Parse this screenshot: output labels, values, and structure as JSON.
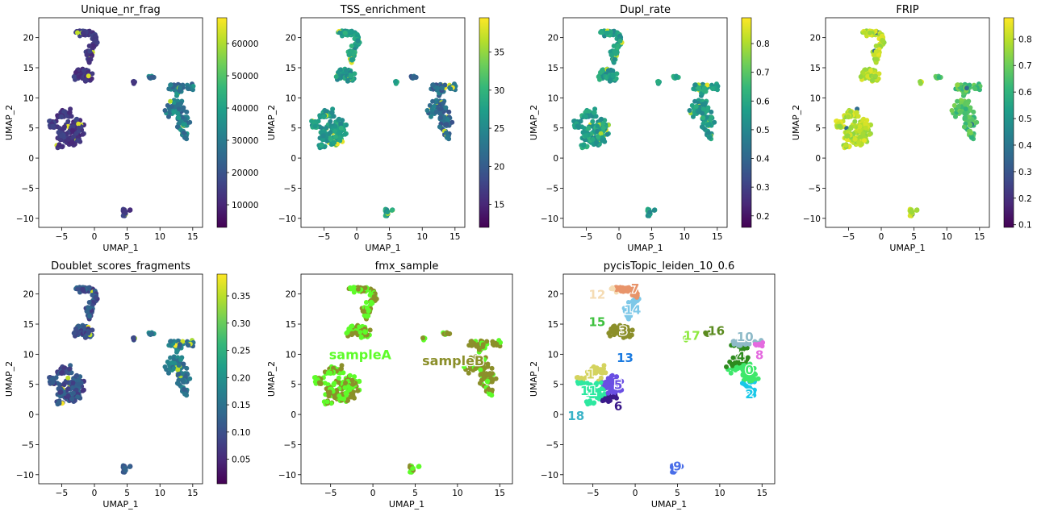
{
  "chart_data": [
    {
      "type": "scatter",
      "title": "Unique_nr_frag",
      "xlabel": "UMAP_1",
      "ylabel": "UMAP_2",
      "xlim": [
        -8.5,
        16.5
      ],
      "ylim": [
        -11.5,
        23.3
      ],
      "xticks": [
        "−5",
        "0",
        "5",
        "10",
        "15"
      ],
      "yticks": [
        "−10",
        "−5",
        "0",
        "5",
        "10",
        "15",
        "20"
      ],
      "colorbar": {
        "colormap": "viridis",
        "range": [
          3000,
          68000
        ],
        "ticks": [
          "10000",
          "20000",
          "30000",
          "40000",
          "50000",
          "60000"
        ]
      }
    },
    {
      "type": "scatter",
      "title": "TSS_enrichment",
      "xlabel": "UMAP_1",
      "ylabel": "UMAP_2",
      "xlim": [
        -8.5,
        16.5
      ],
      "ylim": [
        -11.5,
        23.3
      ],
      "xticks": [
        "−5",
        "0",
        "5",
        "10",
        "15"
      ],
      "yticks": [
        "−10",
        "−5",
        "0",
        "5",
        "10",
        "15",
        "20"
      ],
      "colorbar": {
        "colormap": "viridis",
        "range": [
          12,
          39.5
        ],
        "ticks": [
          "15",
          "20",
          "25",
          "30",
          "35"
        ]
      }
    },
    {
      "type": "scatter",
      "title": "Dupl_rate",
      "xlabel": "UMAP_1",
      "ylabel": "UMAP_2",
      "xlim": [
        -8.5,
        16.5
      ],
      "ylim": [
        -11.5,
        23.3
      ],
      "xticks": [
        "−5",
        "0",
        "5",
        "10",
        "15"
      ],
      "yticks": [
        "−10",
        "−5",
        "0",
        "5",
        "10",
        "15",
        "20"
      ],
      "colorbar": {
        "colormap": "viridis",
        "range": [
          0.16,
          0.89
        ],
        "ticks": [
          "0.2",
          "0.3",
          "0.4",
          "0.5",
          "0.6",
          "0.7",
          "0.8"
        ]
      }
    },
    {
      "type": "scatter",
      "title": "FRIP",
      "xlabel": "UMAP_1",
      "ylabel": "UMAP_2",
      "xlim": [
        -8.5,
        16.5
      ],
      "ylim": [
        -11.5,
        23.3
      ],
      "xticks": [
        "−5",
        "0",
        "5",
        "10",
        "15"
      ],
      "yticks": [
        "−10",
        "−5",
        "0",
        "5",
        "10",
        "15",
        "20"
      ],
      "colorbar": {
        "colormap": "viridis",
        "range": [
          0.09,
          0.88
        ],
        "ticks": [
          "0.1",
          "0.2",
          "0.3",
          "0.4",
          "0.5",
          "0.6",
          "0.7",
          "0.8"
        ]
      }
    },
    {
      "type": "scatter",
      "title": "Doublet_scores_fragments",
      "xlabel": "UMAP_1",
      "ylabel": "UMAP_2",
      "xlim": [
        -8.5,
        16.5
      ],
      "ylim": [
        -11.5,
        23.3
      ],
      "xticks": [
        "−5",
        "0",
        "5",
        "10",
        "15"
      ],
      "yticks": [
        "−10",
        "−5",
        "0",
        "5",
        "10",
        "15",
        "20"
      ],
      "colorbar": {
        "colormap": "viridis",
        "range": [
          0.005,
          0.39
        ],
        "ticks": [
          "0.05",
          "0.10",
          "0.15",
          "0.20",
          "0.25",
          "0.30",
          "0.35"
        ]
      }
    },
    {
      "type": "scatter",
      "title": "fmx_sample",
      "xlabel": "UMAP_1",
      "ylabel": "UMAP_2",
      "xlim": [
        -8.5,
        16.5
      ],
      "ylim": [
        -11.5,
        23.3
      ],
      "xticks": [
        "−5",
        "0",
        "5",
        "10",
        "15"
      ],
      "yticks": [
        "−10",
        "−5",
        "0",
        "5",
        "10",
        "15",
        "20"
      ],
      "labels": [
        {
          "text": "sampleA",
          "x": -1.5,
          "y": 10,
          "color": "#5efc29"
        },
        {
          "text": "sampleB",
          "x": 9.5,
          "y": 9,
          "color": "#8b8f2a"
        }
      ]
    },
    {
      "type": "scatter",
      "title": "pycisTopic_leiden_10_0.6",
      "xlabel": "UMAP_1",
      "ylabel": "UMAP_2",
      "xlim": [
        -8.5,
        16.5
      ],
      "ylim": [
        -11.5,
        23.3
      ],
      "xticks": [
        "−5",
        "0",
        "5",
        "10",
        "15"
      ],
      "yticks": [
        "−10",
        "−5",
        "0",
        "5",
        "10",
        "15",
        "20"
      ],
      "clusters": [
        {
          "label": "0",
          "x": 13.5,
          "y": 7.5,
          "color": "#3ee86b"
        },
        {
          "label": "1",
          "x": -5.3,
          "y": 6.8,
          "color": "#d4d35e"
        },
        {
          "label": "2",
          "x": 13.5,
          "y": 3.5,
          "color": "#19c8e8"
        },
        {
          "label": "3",
          "x": -1.4,
          "y": 14.0,
          "color": "#8b8f2a"
        },
        {
          "label": "4",
          "x": 12.5,
          "y": 9.7,
          "color": "#2e8b1e"
        },
        {
          "label": "5",
          "x": -2.0,
          "y": 5.0,
          "color": "#6a4fe3"
        },
        {
          "label": "6",
          "x": -2.0,
          "y": 1.5,
          "color": "#3b1a8a"
        },
        {
          "label": "7",
          "x": 0.0,
          "y": 21.0,
          "color": "#e8946a"
        },
        {
          "label": "8",
          "x": 14.7,
          "y": 10.0,
          "color": "#e46adf"
        },
        {
          "label": "9",
          "x": 5.0,
          "y": -8.5,
          "color": "#4a6ee8"
        },
        {
          "label": "10",
          "x": 13.0,
          "y": 13.0,
          "color": "#8ebac8"
        },
        {
          "label": "11",
          "x": -5.5,
          "y": 4.0,
          "color": "#2de8a0"
        },
        {
          "label": "12",
          "x": -4.5,
          "y": 20.0,
          "color": "#f5dcb4"
        },
        {
          "label": "13",
          "x": -1.2,
          "y": 9.5,
          "color": "#1a7ae0"
        },
        {
          "label": "14",
          "x": -0.3,
          "y": 17.5,
          "color": "#7ec8e8"
        },
        {
          "label": "15",
          "x": -4.5,
          "y": 15.5,
          "color": "#3fc13f"
        },
        {
          "label": "16",
          "x": 9.6,
          "y": 14.0,
          "color": "#5a8a1e"
        },
        {
          "label": "17",
          "x": 6.7,
          "y": 13.2,
          "color": "#8ee83f"
        },
        {
          "label": "18",
          "x": -7.0,
          "y": -0.1,
          "color": "#3ab3c8"
        }
      ]
    }
  ]
}
